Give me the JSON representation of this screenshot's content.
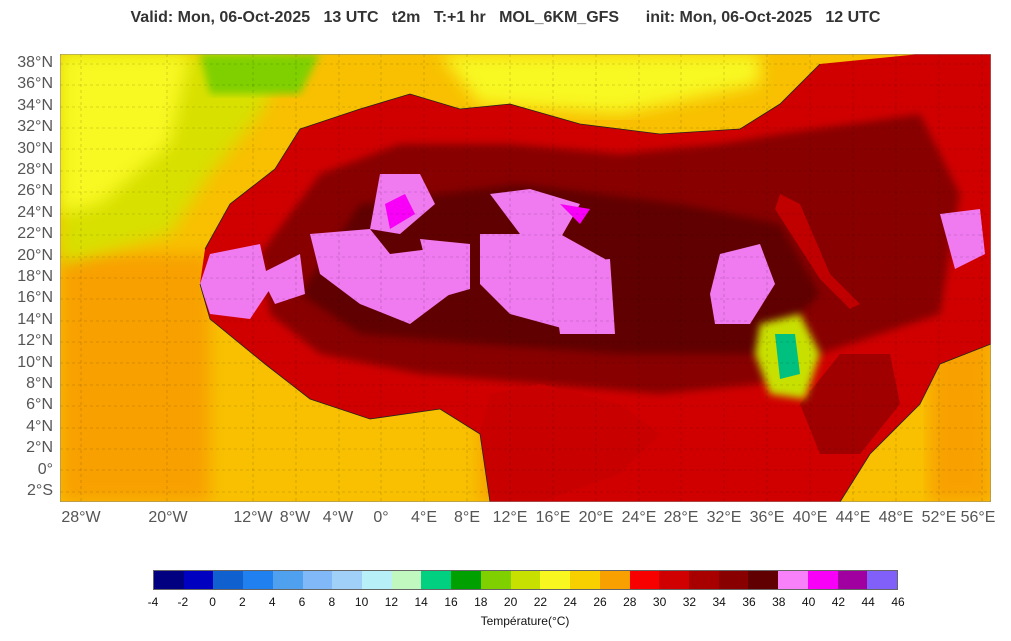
{
  "header": {
    "title": "Valid: Mon, 06-Oct-2025   13 UTC   t2m   T:+1 hr   MOL_6KM_GFS      init: Mon, 06-Oct-2025   12 UTC"
  },
  "axes": {
    "lat_labels": [
      "38°N",
      "36°N",
      "34°N",
      "32°N",
      "30°N",
      "28°N",
      "26°N",
      "24°N",
      "22°N",
      "20°N",
      "18°N",
      "16°N",
      "14°N",
      "12°N",
      "10°N",
      "8°N",
      "6°N",
      "4°N",
      "2°N",
      "0°",
      "2°S"
    ],
    "lon_labels": [
      "28°W",
      "20°W",
      "12°W",
      "8°W",
      "4°W",
      "0°",
      "4°E",
      "8°E",
      "12°E",
      "16°E",
      "20°E",
      "24°E",
      "28°E",
      "32°E",
      "36°E",
      "40°E",
      "44°E",
      "48°E",
      "52°E",
      "56°E"
    ]
  },
  "colorbar": {
    "label": "Température(°C)",
    "ticks": [
      "-4",
      "-2",
      "0",
      "2",
      "4",
      "6",
      "8",
      "10",
      "12",
      "14",
      "16",
      "18",
      "20",
      "22",
      "24",
      "26",
      "28",
      "30",
      "32",
      "34",
      "36",
      "38",
      "40",
      "42",
      "44",
      "46"
    ],
    "colors": [
      "#000080",
      "#0000c0",
      "#1060d0",
      "#2080f0",
      "#50a0f0",
      "#80b8f8",
      "#a0d0f8",
      "#b8f0f8",
      "#c0f8c0",
      "#00d080",
      "#00a000",
      "#80d000",
      "#c8e000",
      "#f8f820",
      "#f8d000",
      "#f8a000",
      "#f80000",
      "#d00000",
      "#a80000",
      "#880000",
      "#600000",
      "#f880f8",
      "#f800f8",
      "#a000a0",
      "#8060f8"
    ]
  }
}
